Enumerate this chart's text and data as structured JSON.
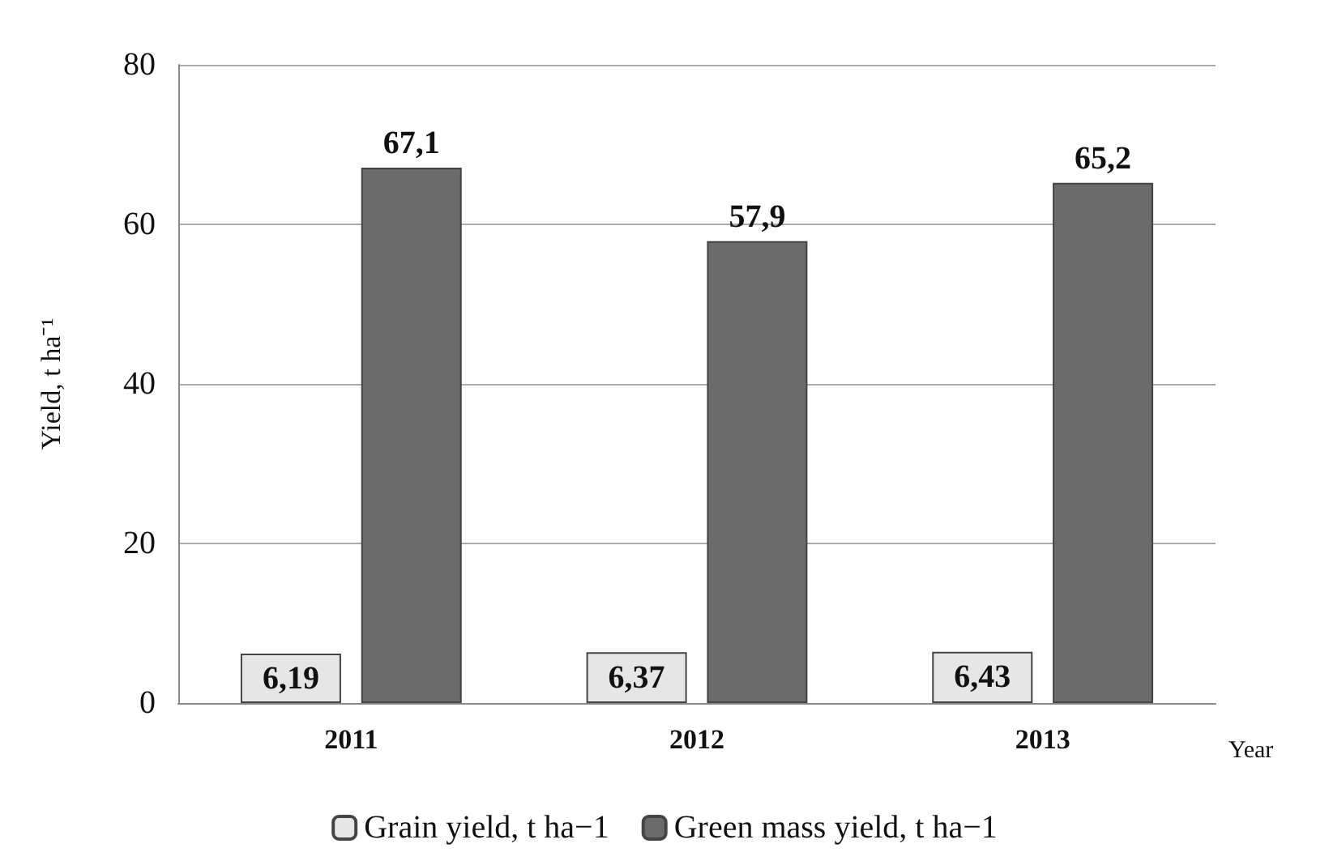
{
  "chart_data": {
    "type": "bar",
    "ylabel": "Yield, t ha⁻¹",
    "xlabel": "Year",
    "categories": [
      "2011",
      "2012",
      "2013"
    ],
    "series": [
      {
        "name": "Grain yield, t ha−1",
        "color": "#e6e6e6",
        "values": [
          6.19,
          6.37,
          6.43
        ],
        "value_labels": [
          "6,19",
          "6,37",
          "6,43"
        ]
      },
      {
        "name": "Green mass yield, t ha−1",
        "color": "#6b6b6b",
        "values": [
          67.1,
          57.9,
          65.2
        ],
        "value_labels": [
          "67,1",
          "57,9",
          "65,2"
        ]
      }
    ],
    "ylim": [
      0,
      80
    ],
    "yticks": [
      0,
      20,
      40,
      60,
      80
    ],
    "grid": "y",
    "legend": "bottom"
  }
}
